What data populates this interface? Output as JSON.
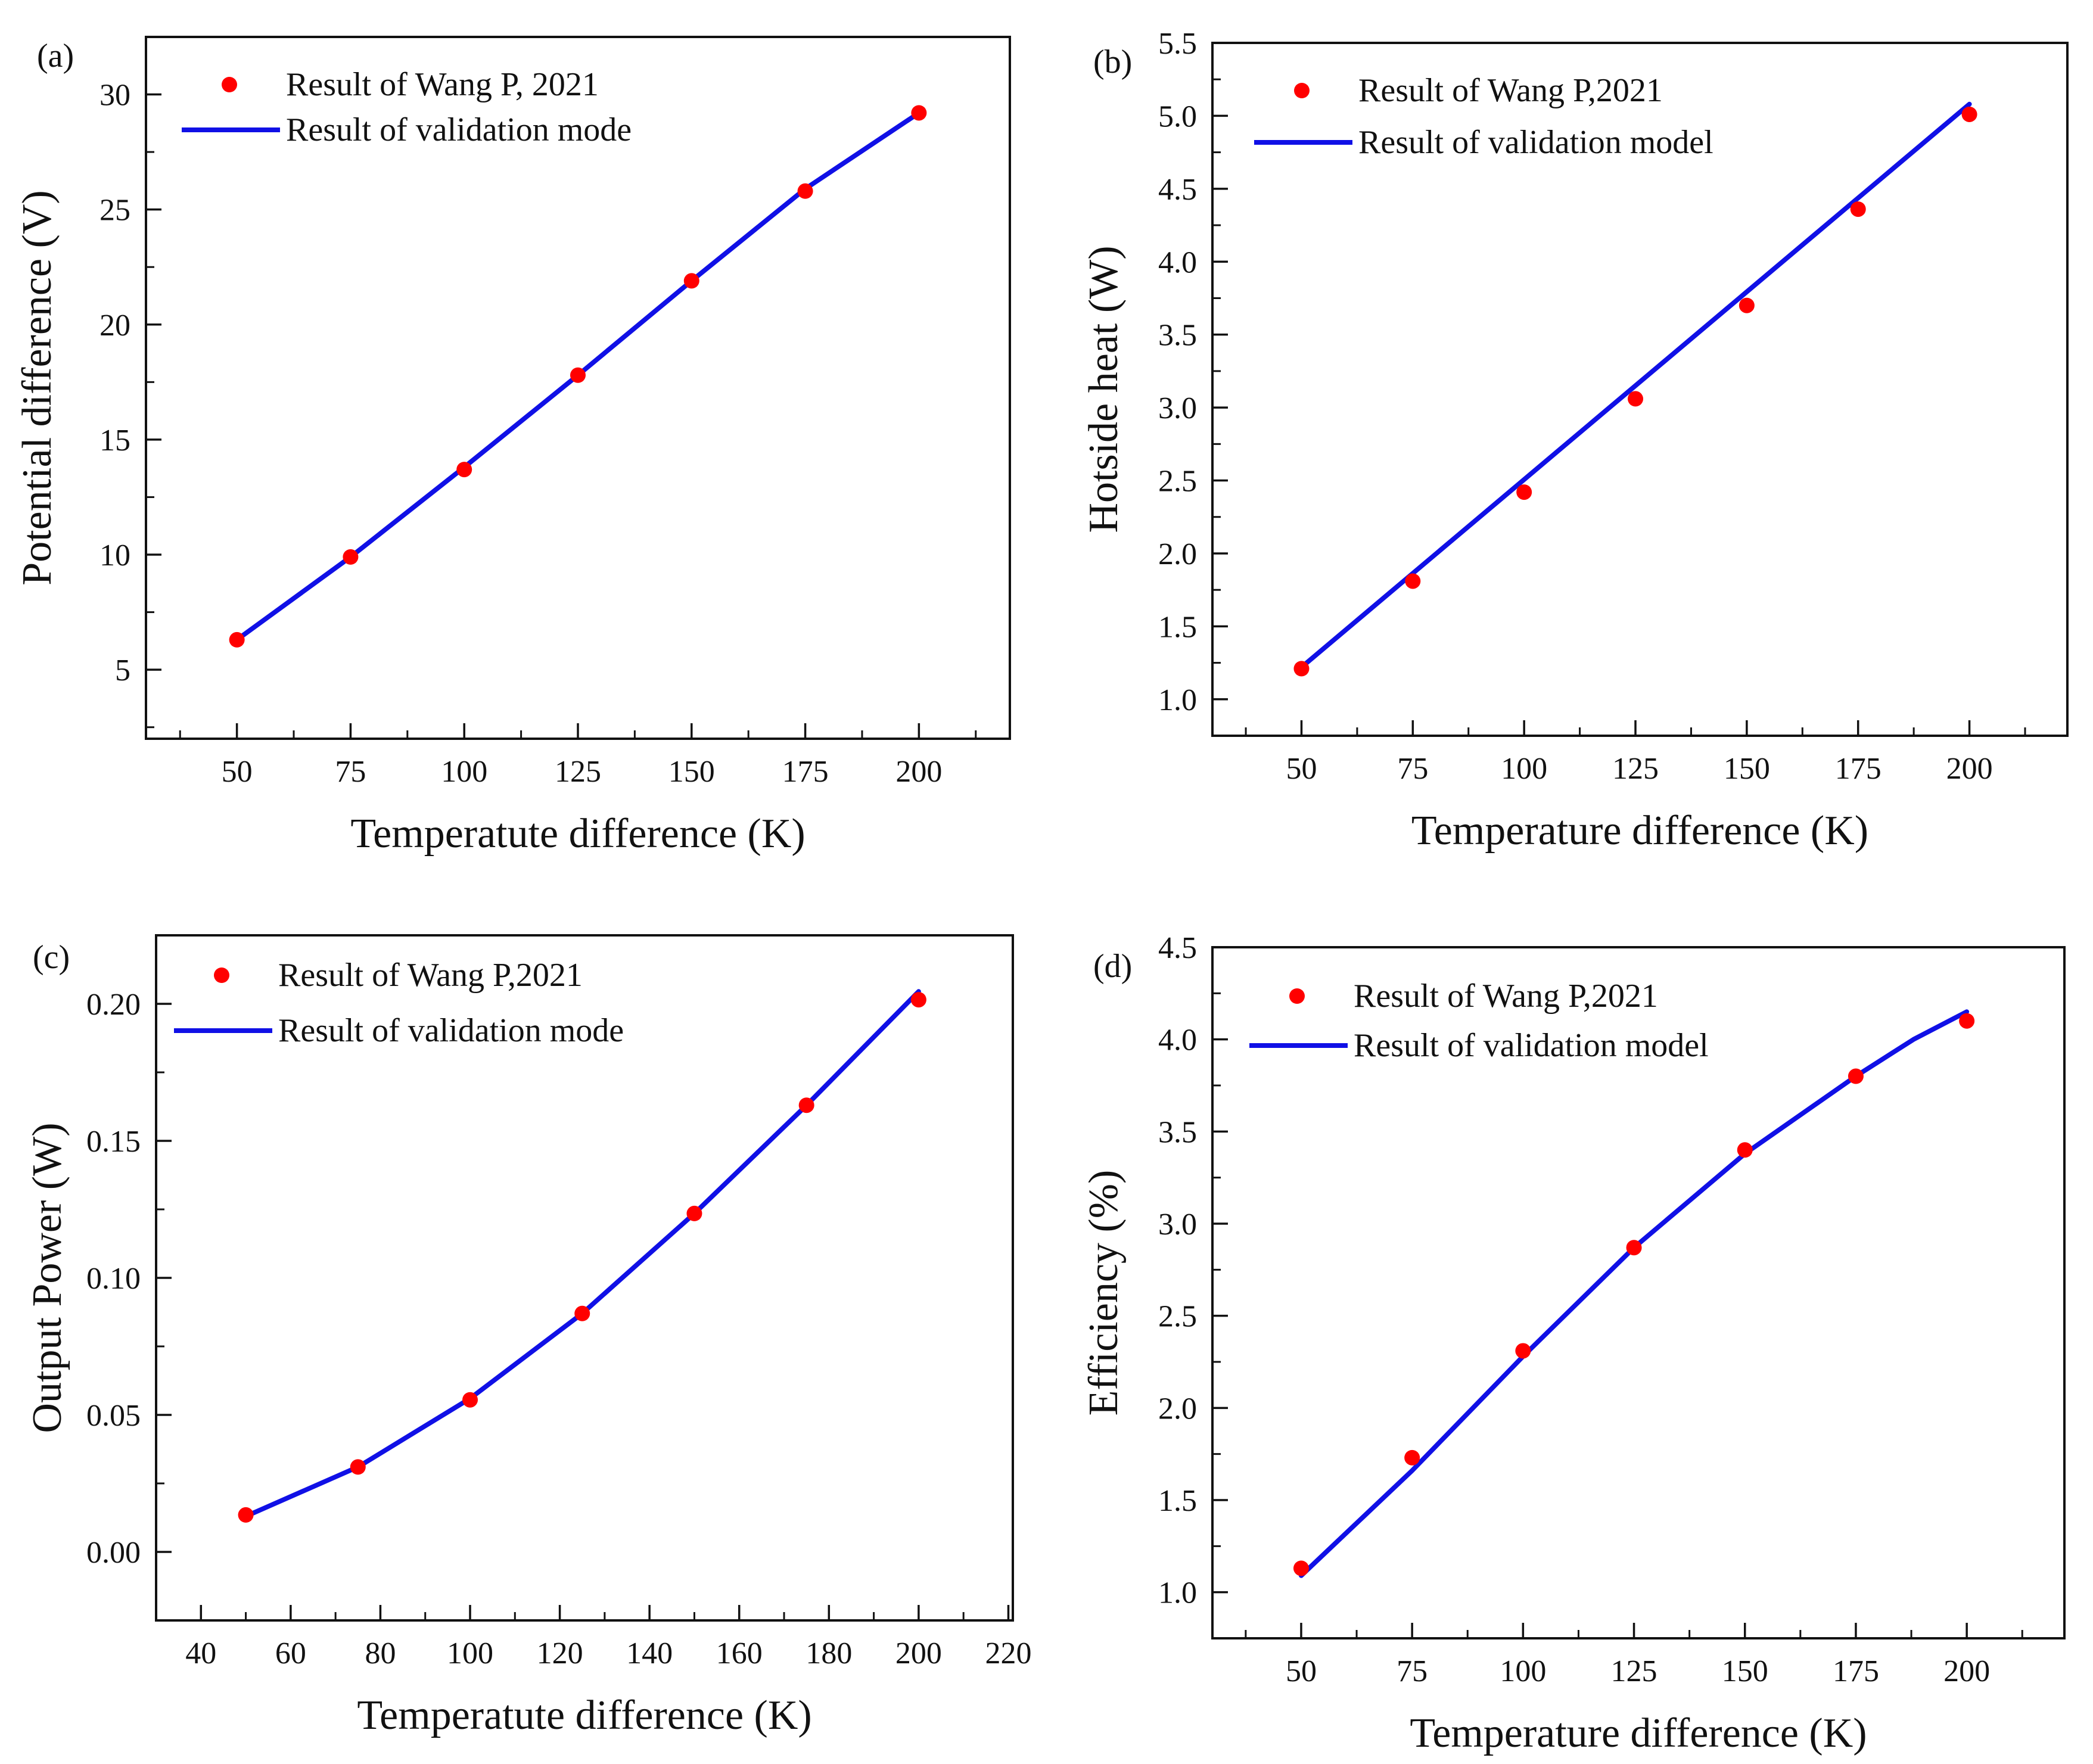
{
  "chart_data": [
    {
      "id": "a",
      "type": "line+scatter",
      "panel_label": "(a)",
      "xlabel": "Temperatute difference (K)",
      "ylabel": "Potential difference (V)",
      "xlim": [
        30,
        220
      ],
      "ylim": [
        2,
        32.5
      ],
      "xticks": [
        50,
        75,
        100,
        125,
        150,
        175,
        200
      ],
      "yticks": [
        5,
        10,
        15,
        20,
        25,
        30
      ],
      "legend_position": "top-left",
      "colors": {
        "scatter": "#ff0000",
        "line": "#1010e6"
      },
      "series": [
        {
          "name": "Result of Wang P, 2021",
          "kind": "scatter",
          "x": [
            50,
            75,
            100,
            125,
            150,
            175,
            200
          ],
          "y": [
            6.3,
            9.9,
            13.7,
            17.8,
            21.9,
            25.8,
            29.2
          ]
        },
        {
          "name": "Result of validation mode",
          "kind": "line",
          "x": [
            50,
            75,
            100,
            125,
            150,
            175,
            200
          ],
          "y": [
            6.3,
            9.9,
            13.8,
            17.8,
            21.9,
            25.9,
            29.2
          ]
        }
      ]
    },
    {
      "id": "b",
      "type": "line+scatter",
      "panel_label": "(b)",
      "xlabel": "Temperature difference (K)",
      "ylabel": "Hotside heat (W)",
      "xlim": [
        30,
        222
      ],
      "ylim": [
        0.75,
        5.5
      ],
      "xticks": [
        50,
        75,
        100,
        125,
        150,
        175,
        200
      ],
      "yticks": [
        1.0,
        1.5,
        2.0,
        2.5,
        3.0,
        3.5,
        4.0,
        4.5,
        5.0,
        5.5
      ],
      "legend_position": "top-left",
      "colors": {
        "scatter": "#ff0000",
        "line": "#1010e6"
      },
      "series": [
        {
          "name": "Result of Wang P,2021",
          "kind": "scatter",
          "x": [
            50,
            75,
            100,
            125,
            150,
            175,
            200
          ],
          "y": [
            1.21,
            1.81,
            2.42,
            3.06,
            3.7,
            4.36,
            5.01
          ]
        },
        {
          "name": "Result of validation model",
          "kind": "line",
          "x": [
            50,
            200
          ],
          "y": [
            1.22,
            5.08
          ]
        }
      ]
    },
    {
      "id": "c",
      "type": "line+scatter",
      "panel_label": "(c)",
      "xlabel": "Temperatute difference (K)",
      "ylabel": "Output Power (W)",
      "xlim": [
        30,
        221
      ],
      "ylim": [
        -0.025,
        0.225
      ],
      "xticks": [
        40,
        60,
        80,
        100,
        120,
        140,
        160,
        180,
        200,
        220
      ],
      "yticks": [
        0.0,
        0.05,
        0.1,
        0.15,
        0.2
      ],
      "legend_position": "top-left",
      "colors": {
        "scatter": "#ff0000",
        "line": "#1010e6"
      },
      "series": [
        {
          "name": "Result of Wang P,2021",
          "kind": "scatter",
          "x": [
            50,
            75,
            100,
            125,
            150,
            175,
            200
          ],
          "y": [
            0.0135,
            0.031,
            0.0555,
            0.087,
            0.1235,
            0.163,
            0.2015
          ]
        },
        {
          "name": "Result of validation mode",
          "kind": "line",
          "x": [
            50,
            75,
            100,
            125,
            150,
            175,
            200
          ],
          "y": [
            0.013,
            0.031,
            0.056,
            0.087,
            0.1235,
            0.163,
            0.2045
          ]
        }
      ]
    },
    {
      "id": "d",
      "type": "line+scatter",
      "panel_label": "(d)",
      "xlabel": "Temperature difference (K)",
      "ylabel": "Efficiency (%)",
      "xlim": [
        30,
        222
      ],
      "ylim": [
        0.75,
        4.5
      ],
      "xticks": [
        50,
        75,
        100,
        125,
        150,
        175,
        200
      ],
      "yticks": [
        1.0,
        1.5,
        2.0,
        2.5,
        3.0,
        3.5,
        4.0,
        4.5
      ],
      "legend_position": "top-left",
      "colors": {
        "scatter": "#ff0000",
        "line": "#1010e6"
      },
      "series": [
        {
          "name": "Result of Wang P,2021",
          "kind": "scatter",
          "x": [
            50,
            75,
            100,
            125,
            150,
            175,
            200
          ],
          "y": [
            1.13,
            1.73,
            2.31,
            2.87,
            3.4,
            3.8,
            4.1
          ]
        },
        {
          "name": "Result of validation model",
          "kind": "line",
          "x": [
            50,
            75,
            100,
            125,
            150,
            175,
            188,
            200
          ],
          "y": [
            1.09,
            1.66,
            2.28,
            2.87,
            3.38,
            3.8,
            4.0,
            4.15
          ]
        }
      ]
    }
  ]
}
